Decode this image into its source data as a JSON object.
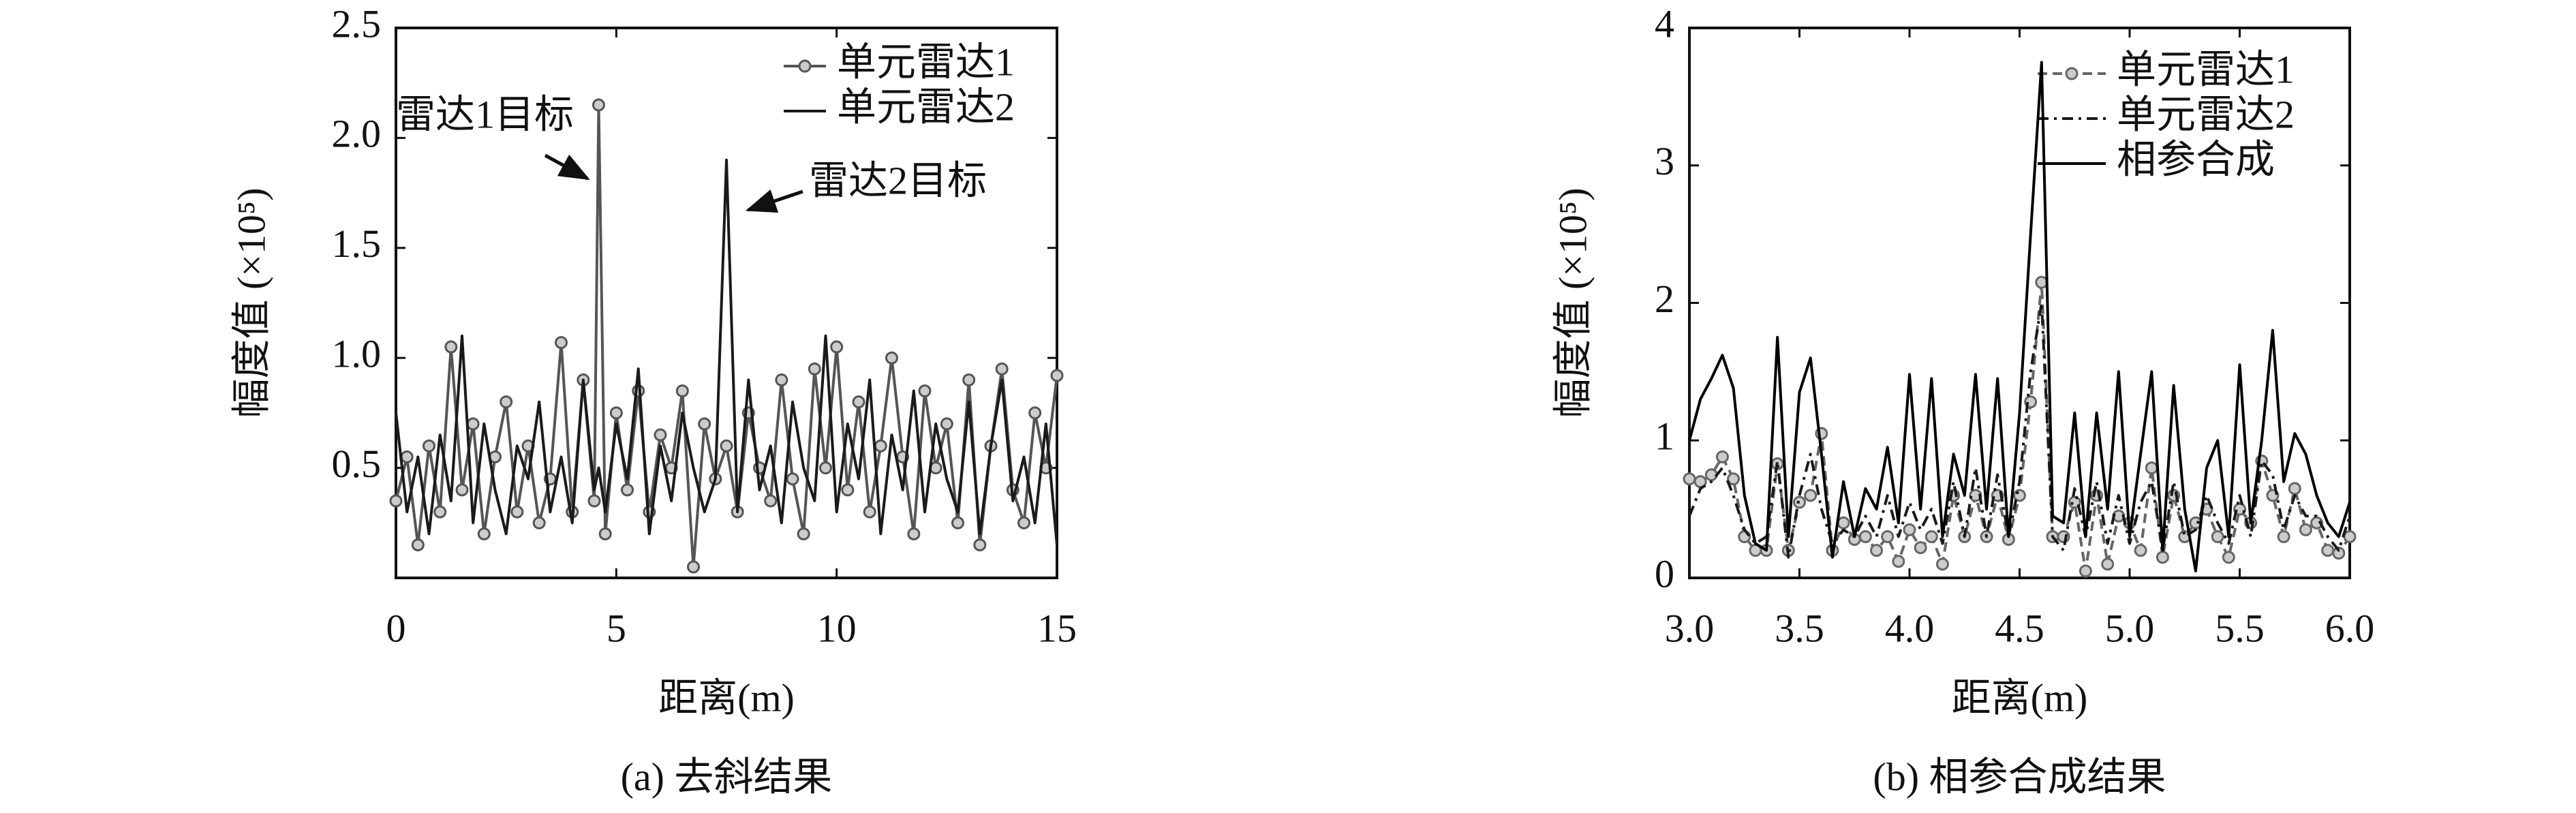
{
  "chart_data": [
    {
      "type": "line",
      "x_label": "距离(m)",
      "y_label": "幅度值 (×10⁵)",
      "caption": "(a) 去斜结果",
      "x": [
        0,
        0.25,
        0.5,
        0.75,
        1,
        1.25,
        1.5,
        1.75,
        2,
        2.25,
        2.5,
        2.75,
        3,
        3.25,
        3.5,
        3.75,
        4,
        4.25,
        4.5,
        4.6,
        4.75,
        5,
        5.25,
        5.5,
        5.75,
        6,
        6.25,
        6.5,
        6.75,
        7,
        7.25,
        7.5,
        7.75,
        8,
        8.25,
        8.5,
        8.75,
        9,
        9.25,
        9.5,
        9.75,
        10,
        10.25,
        10.5,
        10.75,
        11,
        11.25,
        11.5,
        11.75,
        12,
        12.25,
        12.5,
        12.75,
        13,
        13.25,
        13.5,
        13.75,
        14,
        14.25,
        14.5,
        14.75,
        15
      ],
      "series": [
        {
          "name": "单元雷达1",
          "color": "#555555",
          "marker": "circle",
          "dash": "none",
          "values": [
            0.35,
            0.55,
            0.15,
            0.6,
            0.3,
            1.05,
            0.4,
            0.7,
            0.2,
            0.55,
            0.8,
            0.3,
            0.6,
            0.25,
            0.45,
            1.07,
            0.3,
            0.9,
            0.35,
            2.15,
            0.2,
            0.75,
            0.4,
            0.85,
            0.3,
            0.65,
            0.5,
            0.85,
            0.05,
            0.7,
            0.45,
            0.6,
            0.3,
            0.75,
            0.5,
            0.35,
            0.9,
            0.45,
            0.2,
            0.95,
            0.5,
            1.05,
            0.4,
            0.8,
            0.3,
            0.6,
            1.0,
            0.55,
            0.2,
            0.85,
            0.5,
            0.7,
            0.25,
            0.9,
            0.15,
            0.6,
            0.95,
            0.4,
            0.25,
            0.75,
            0.5,
            0.92
          ]
        },
        {
          "name": "单元雷达2",
          "color": "#1a1a1a",
          "marker": "none",
          "dash": "none",
          "values": [
            0.75,
            0.3,
            0.55,
            0.2,
            0.65,
            0.35,
            1.1,
            0.25,
            0.7,
            0.4,
            0.2,
            0.6,
            0.45,
            0.8,
            0.3,
            0.55,
            0.25,
            0.9,
            0.4,
            0.5,
            0.3,
            0.7,
            0.45,
            0.95,
            0.2,
            0.6,
            0.35,
            0.75,
            0.5,
            0.3,
            0.45,
            1.9,
            0.3,
            0.9,
            0.4,
            0.6,
            0.25,
            0.8,
            0.5,
            0.35,
            1.1,
            0.3,
            0.7,
            0.45,
            0.9,
            0.2,
            0.65,
            0.4,
            0.85,
            0.3,
            0.7,
            0.45,
            0.3,
            0.8,
            0.2,
            0.6,
            0.9,
            0.35,
            0.55,
            0.25,
            0.7,
            0.15
          ]
        }
      ],
      "annotations": [
        {
          "text": "雷达1目标"
        },
        {
          "text": "雷达2目标"
        }
      ],
      "xlim": [
        0,
        15
      ],
      "xticks": [
        0,
        5,
        10,
        15
      ],
      "ylim": [
        0,
        2.5
      ],
      "yticks": [
        0.5,
        {
          "value": 1,
          "label": "1.0"
        },
        1.5,
        {
          "value": 2,
          "label": "2.0"
        },
        2.5
      ],
      "grid": false,
      "legend": "upper right"
    },
    {
      "type": "line",
      "x_label": "距离(m)",
      "y_label": "幅度值 (×10⁵)",
      "caption": "(b) 相参合成结果",
      "x": [
        3,
        3.05,
        3.1,
        3.15,
        3.2,
        3.25,
        3.3,
        3.35,
        3.4,
        3.45,
        3.5,
        3.55,
        3.6,
        3.65,
        3.7,
        3.75,
        3.8,
        3.85,
        3.9,
        3.95,
        4,
        4.05,
        4.1,
        4.15,
        4.2,
        4.25,
        4.3,
        4.35,
        4.4,
        4.45,
        4.5,
        4.55,
        4.6,
        4.65,
        4.7,
        4.75,
        4.8,
        4.85,
        4.9,
        4.95,
        5,
        5.05,
        5.1,
        5.15,
        5.2,
        5.25,
        5.3,
        5.35,
        5.4,
        5.45,
        5.5,
        5.55,
        5.6,
        5.65,
        5.7,
        5.75,
        5.8,
        5.85,
        5.9,
        5.95,
        6
      ],
      "series": [
        {
          "name": "单元雷达1",
          "color": "#666666",
          "marker": "circle",
          "dash": "14,8",
          "values": [
            0.72,
            0.7,
            0.75,
            0.88,
            0.72,
            0.3,
            0.2,
            0.2,
            0.83,
            0.2,
            0.55,
            0.6,
            1.05,
            0.2,
            0.4,
            0.28,
            0.3,
            0.2,
            0.3,
            0.12,
            0.35,
            0.22,
            0.3,
            0.1,
            0.6,
            0.3,
            0.6,
            0.3,
            0.6,
            0.28,
            0.6,
            1.28,
            2.15,
            0.3,
            0.3,
            0.55,
            0.05,
            0.6,
            0.1,
            0.45,
            0.4,
            0.2,
            0.8,
            0.15,
            0.6,
            0.3,
            0.4,
            0.5,
            0.3,
            0.15,
            0.5,
            0.4,
            0.85,
            0.6,
            0.3,
            0.65,
            0.35,
            0.4,
            0.2,
            0.18,
            0.3
          ]
        },
        {
          "name": "单元雷达2",
          "color": "#1a1a1a",
          "marker": "none",
          "dash": "16,8,4,8",
          "values": [
            0.45,
            0.65,
            0.7,
            0.8,
            0.6,
            0.35,
            0.25,
            0.3,
            0.85,
            0.15,
            0.6,
            0.9,
            0.5,
            0.25,
            0.35,
            0.3,
            0.45,
            0.3,
            0.6,
            0.3,
            0.55,
            0.35,
            0.5,
            0.25,
            0.7,
            0.3,
            0.8,
            0.3,
            0.75,
            0.3,
            0.7,
            1.5,
            2.0,
            0.3,
            0.2,
            0.65,
            0.3,
            0.7,
            0.25,
            0.6,
            0.25,
            0.55,
            0.7,
            0.2,
            0.7,
            0.3,
            0.35,
            0.6,
            0.4,
            0.25,
            0.6,
            0.3,
            0.85,
            0.75,
            0.35,
            0.6,
            0.45,
            0.45,
            0.3,
            0.2,
            0.45
          ]
        },
        {
          "name": "相参合成",
          "color": "#000000",
          "marker": "none",
          "dash": "none",
          "values": [
            1.0,
            1.3,
            1.45,
            1.62,
            1.38,
            0.6,
            0.25,
            0.2,
            1.75,
            0.3,
            1.35,
            1.6,
            0.9,
            0.15,
            0.7,
            0.3,
            0.65,
            0.5,
            0.95,
            0.4,
            1.48,
            0.5,
            1.45,
            0.3,
            0.9,
            0.6,
            1.48,
            0.5,
            1.45,
            0.3,
            1.2,
            2.5,
            3.75,
            0.45,
            0.4,
            1.2,
            0.3,
            1.2,
            0.5,
            1.5,
            0.3,
            0.9,
            1.5,
            0.2,
            1.4,
            0.5,
            0.05,
            0.8,
            1.0,
            0.3,
            1.55,
            0.4,
            1.0,
            1.8,
            0.7,
            1.05,
            0.9,
            0.6,
            0.4,
            0.3,
            0.55
          ]
        }
      ],
      "xlim": [
        3,
        6
      ],
      "xticks": [
        {
          "value": 3,
          "label": "3.0"
        },
        3.5,
        {
          "value": 4,
          "label": "4.0"
        },
        4.5,
        {
          "value": 5,
          "label": "5.0"
        },
        5.5,
        {
          "value": 6,
          "label": "6.0"
        }
      ],
      "ylim": [
        0,
        4
      ],
      "yticks": [
        0,
        1,
        2,
        3,
        4
      ],
      "grid": false,
      "legend": "upper right"
    }
  ]
}
